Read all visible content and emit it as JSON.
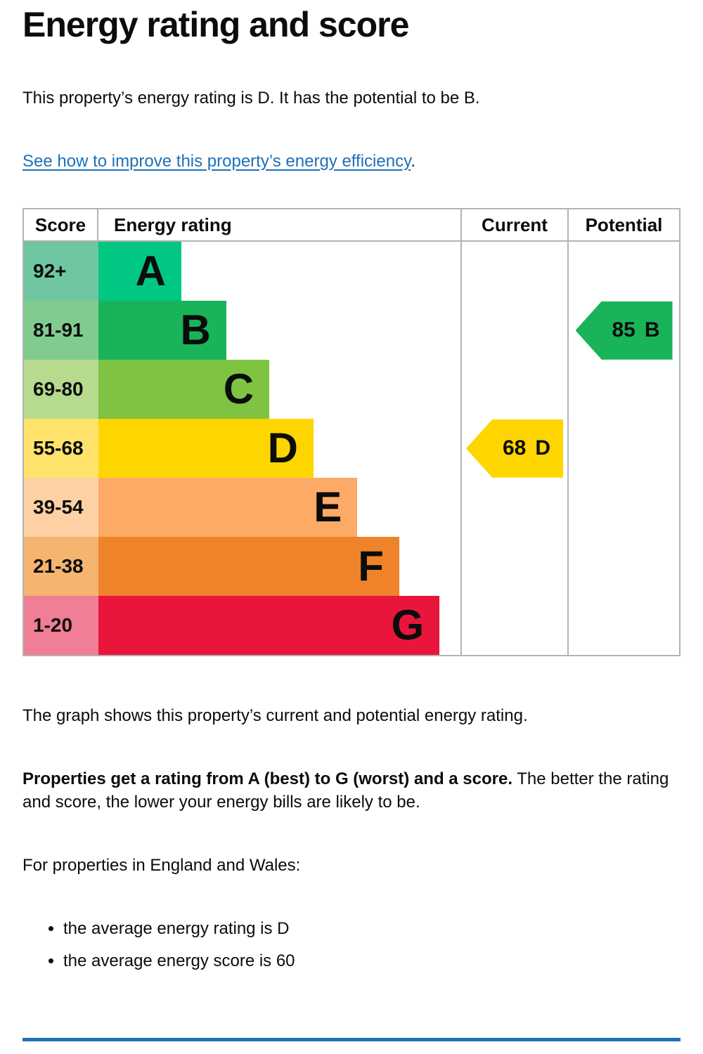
{
  "page": {
    "title": "Energy rating and score",
    "intro": "This property’s energy rating is D. It has the potential to be B.",
    "link_text": "See how to improve this property’s energy efficiency",
    "link_suffix": ".",
    "caption": "The graph shows this property’s current and potential energy rating.",
    "explain_bold": "Properties get a rating from A (best) to G (worst) and a score.",
    "explain_rest": " The better the rating and score, the lower your energy bills are likely to be.",
    "region_intro": "For properties in England and Wales:",
    "bullets": [
      "the average energy rating is D",
      "the average energy score is 60"
    ]
  },
  "epc": {
    "headers": {
      "score": "Score",
      "rating": "Energy rating",
      "current": "Current",
      "potential": "Potential"
    },
    "bands": [
      {
        "letter": "A",
        "score_range": "92+",
        "bar_color": "#00c781",
        "score_bg": "#6fc6a1",
        "bar_width_pct": 22.9
      },
      {
        "letter": "B",
        "score_range": "81-91",
        "bar_color": "#19b459",
        "score_bg": "#82cb8f",
        "bar_width_pct": 35.3
      },
      {
        "letter": "C",
        "score_range": "69-80",
        "bar_color": "#7ec342",
        "score_bg": "#b6da8e",
        "bar_width_pct": 47.2
      },
      {
        "letter": "D",
        "score_range": "55-68",
        "bar_color": "#ffd500",
        "score_bg": "#ffe36b",
        "bar_width_pct": 59.4
      },
      {
        "letter": "E",
        "score_range": "39-54",
        "bar_color": "#fcaa65",
        "score_bg": "#fdd1a4",
        "bar_width_pct": 71.5
      },
      {
        "letter": "F",
        "score_range": "21-38",
        "bar_color": "#ef8329",
        "score_bg": "#f5b470",
        "bar_width_pct": 83.1
      },
      {
        "letter": "G",
        "score_range": "1-20",
        "bar_color": "#e9153b",
        "score_bg": "#f07e95",
        "bar_width_pct": 94.2
      }
    ],
    "current_marker": {
      "score": "68",
      "letter": "D",
      "band_index": 3,
      "color": "#ffd500"
    },
    "potential_marker": {
      "score": "85",
      "letter": "B",
      "band_index": 1,
      "color": "#19b459"
    }
  },
  "colors": {
    "text": "#0b0c0c",
    "link": "#1d70b8",
    "border": "#b1b4b6",
    "section_break": "#1d70b8"
  },
  "chart_data": {
    "type": "bar",
    "title": "Energy rating and score",
    "columns": [
      "Score",
      "Energy rating",
      "Current",
      "Potential"
    ],
    "categories": [
      "A",
      "B",
      "C",
      "D",
      "E",
      "F",
      "G"
    ],
    "score_ranges": [
      "92+",
      "81-91",
      "69-80",
      "55-68",
      "39-54",
      "21-38",
      "1-20"
    ],
    "band_colors": [
      "#00c781",
      "#19b459",
      "#7ec342",
      "#ffd500",
      "#fcaa65",
      "#ef8329",
      "#e9153b"
    ],
    "current": {
      "score": 68,
      "rating": "D"
    },
    "potential": {
      "score": 85,
      "rating": "B"
    },
    "average_energy_rating": "D",
    "average_energy_score": 60,
    "legend_position": "none",
    "grid": false
  }
}
